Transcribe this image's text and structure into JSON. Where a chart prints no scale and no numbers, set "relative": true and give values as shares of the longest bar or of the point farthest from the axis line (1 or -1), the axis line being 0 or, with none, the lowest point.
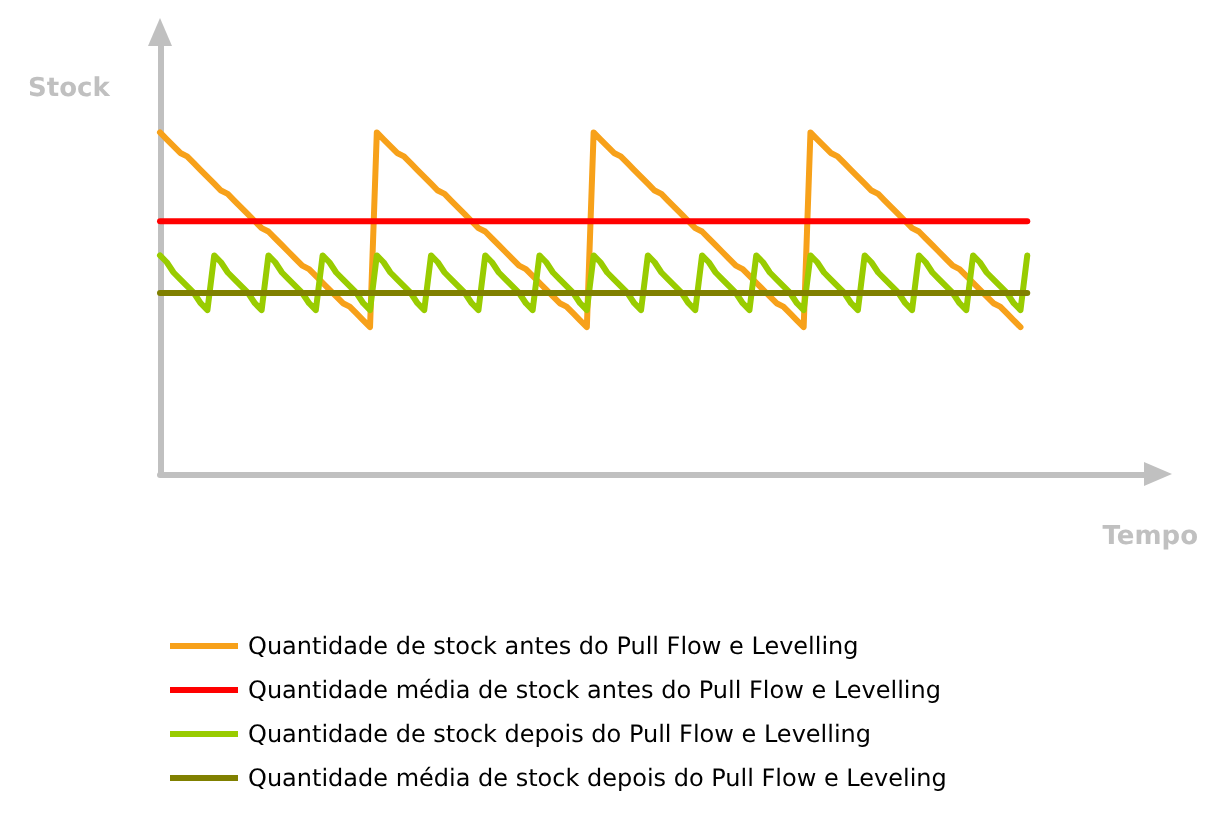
{
  "chart_data": {
    "type": "line",
    "relative": true,
    "xlabel": "Tempo",
    "ylabel": "Stock",
    "grid": false,
    "legend": "bottom",
    "marker": "none",
    "line_style": "solid",
    "categories": [
      null,
      null,
      null,
      null,
      null,
      null,
      null,
      null,
      null,
      null,
      null,
      null,
      null,
      null,
      null,
      null,
      null,
      null,
      null,
      null,
      null,
      null,
      null,
      null,
      null,
      null,
      null,
      null,
      null,
      null,
      null,
      null,
      null,
      null,
      null,
      null,
      null,
      null,
      null,
      null,
      null,
      null,
      null,
      null,
      null,
      null,
      null,
      null,
      null,
      null,
      null,
      null,
      null,
      null,
      null,
      null,
      null,
      null,
      null,
      null,
      null,
      null,
      null,
      null,
      null,
      null,
      null,
      null,
      null,
      null,
      null,
      null,
      null,
      null,
      null,
      null,
      null,
      null,
      null,
      null,
      null,
      null,
      null,
      null,
      null,
      null,
      null,
      null,
      null,
      null,
      null,
      null,
      null,
      null,
      null,
      null,
      null,
      null,
      null,
      null,
      null,
      null,
      null,
      null,
      null,
      null,
      null,
      null,
      null,
      null,
      null,
      null,
      null,
      null,
      null,
      null,
      null,
      null,
      null,
      null,
      null,
      null,
      null,
      null,
      null,
      null,
      null,
      null,
      null,
      null,
      null,
      null,
      null,
      null,
      null,
      null,
      null,
      null,
      null,
      null,
      null,
      null,
      null,
      null,
      null,
      null,
      null,
      null
    ],
    "series": [
      {
        "name": "Quantidade de stock antes do Pull Flow e Levelling",
        "color": "#f7a11a",
        "values": [
          1,
          0.98,
          0.96,
          0.94,
          0.93,
          0.91,
          0.89,
          0.87,
          0.85,
          0.83,
          0.82,
          0.8,
          0.78,
          0.76,
          0.74,
          0.72,
          0.71,
          0.69,
          0.67,
          0.65,
          0.63,
          0.61,
          0.6,
          0.58,
          0.56,
          0.54,
          0.52,
          0.5,
          0.49,
          0.47,
          0.45,
          0.43,
          1,
          0.98,
          0.96,
          0.94,
          0.93,
          0.91,
          0.89,
          0.87,
          0.85,
          0.83,
          0.82,
          0.8,
          0.78,
          0.76,
          0.74,
          0.72,
          0.71,
          0.69,
          0.67,
          0.65,
          0.63,
          0.61,
          0.6,
          0.58,
          0.56,
          0.54,
          0.52,
          0.5,
          0.49,
          0.47,
          0.45,
          0.43,
          1,
          0.98,
          0.96,
          0.94,
          0.93,
          0.91,
          0.89,
          0.87,
          0.85,
          0.83,
          0.82,
          0.8,
          0.78,
          0.76,
          0.74,
          0.72,
          0.71,
          0.69,
          0.67,
          0.65,
          0.63,
          0.61,
          0.6,
          0.58,
          0.56,
          0.54,
          0.52,
          0.5,
          0.49,
          0.47,
          0.45,
          0.43,
          1,
          0.98,
          0.96,
          0.94,
          0.93,
          0.91,
          0.89,
          0.87,
          0.85,
          0.83,
          0.82,
          0.8,
          0.78,
          0.76,
          0.74,
          0.72,
          0.71,
          0.69,
          0.67,
          0.65,
          0.63,
          0.61,
          0.6,
          0.58,
          0.56,
          0.54,
          0.52,
          0.5,
          0.49,
          0.47,
          0.45,
          0.43,
          null,
          null,
          null,
          null,
          null,
          null,
          null,
          null,
          null,
          null,
          null,
          null,
          null,
          null,
          null,
          null,
          null,
          null,
          null,
          null
        ]
      },
      {
        "name": "Quantidade média de stock antes do Pull Flow e Levelling",
        "color": "#ff0000",
        "values": [
          0.74,
          0.74,
          0.74,
          0.74,
          0.74,
          0.74,
          0.74,
          0.74,
          0.74,
          0.74,
          0.74,
          0.74,
          0.74,
          0.74,
          0.74,
          0.74,
          0.74,
          0.74,
          0.74,
          0.74,
          0.74,
          0.74,
          0.74,
          0.74,
          0.74,
          0.74,
          0.74,
          0.74,
          0.74,
          0.74,
          0.74,
          0.74,
          0.74,
          0.74,
          0.74,
          0.74,
          0.74,
          0.74,
          0.74,
          0.74,
          0.74,
          0.74,
          0.74,
          0.74,
          0.74,
          0.74,
          0.74,
          0.74,
          0.74,
          0.74,
          0.74,
          0.74,
          0.74,
          0.74,
          0.74,
          0.74,
          0.74,
          0.74,
          0.74,
          0.74,
          0.74,
          0.74,
          0.74,
          0.74,
          0.74,
          0.74,
          0.74,
          0.74,
          0.74,
          0.74,
          0.74,
          0.74,
          0.74,
          0.74,
          0.74,
          0.74,
          0.74,
          0.74,
          0.74,
          0.74,
          0.74,
          0.74,
          0.74,
          0.74,
          0.74,
          0.74,
          0.74,
          0.74,
          0.74,
          0.74,
          0.74,
          0.74,
          0.74,
          0.74,
          0.74,
          0.74,
          0.74,
          0.74,
          0.74,
          0.74,
          0.74,
          0.74,
          0.74,
          0.74,
          0.74,
          0.74,
          0.74,
          0.74,
          0.74,
          0.74,
          0.74,
          0.74,
          0.74,
          0.74,
          0.74,
          0.74,
          0.74,
          0.74,
          0.74,
          0.74,
          0.74,
          0.74,
          0.74,
          0.74,
          0.74,
          0.74,
          0.74,
          0.74,
          0.74,
          null,
          null,
          null,
          null,
          null,
          null,
          null,
          null,
          null,
          null,
          null,
          null,
          null,
          null,
          null,
          null,
          null,
          null,
          null
        ]
      },
      {
        "name": "Quantidade de stock depois do Pull Flow e Levelling",
        "color": "#99cc00",
        "values": [
          0.64,
          0.62,
          0.59,
          0.57,
          0.55,
          0.53,
          0.5,
          0.48,
          0.64,
          0.62,
          0.59,
          0.57,
          0.55,
          0.53,
          0.5,
          0.48,
          0.64,
          0.62,
          0.59,
          0.57,
          0.55,
          0.53,
          0.5,
          0.48,
          0.64,
          0.62,
          0.59,
          0.57,
          0.55,
          0.53,
          0.5,
          0.48,
          0.64,
          0.62,
          0.59,
          0.57,
          0.55,
          0.53,
          0.5,
          0.48,
          0.64,
          0.62,
          0.59,
          0.57,
          0.55,
          0.53,
          0.5,
          0.48,
          0.64,
          0.62,
          0.59,
          0.57,
          0.55,
          0.53,
          0.5,
          0.48,
          0.64,
          0.62,
          0.59,
          0.57,
          0.55,
          0.53,
          0.5,
          0.48,
          0.64,
          0.62,
          0.59,
          0.57,
          0.55,
          0.53,
          0.5,
          0.48,
          0.64,
          0.62,
          0.59,
          0.57,
          0.55,
          0.53,
          0.5,
          0.48,
          0.64,
          0.62,
          0.59,
          0.57,
          0.55,
          0.53,
          0.5,
          0.48,
          0.64,
          0.62,
          0.59,
          0.57,
          0.55,
          0.53,
          0.5,
          0.48,
          0.64,
          0.62,
          0.59,
          0.57,
          0.55,
          0.53,
          0.5,
          0.48,
          0.64,
          0.62,
          0.59,
          0.57,
          0.55,
          0.53,
          0.5,
          0.48,
          0.64,
          0.62,
          0.59,
          0.57,
          0.55,
          0.53,
          0.5,
          0.48,
          0.64,
          0.62,
          0.59,
          0.57,
          0.55,
          0.53,
          0.5,
          0.48,
          0.64,
          null,
          null,
          null,
          null,
          null,
          null,
          null,
          null,
          null,
          null,
          null,
          null,
          null,
          null,
          null,
          null,
          null,
          null,
          null
        ]
      },
      {
        "name": "Quantidade média de stock depois do Pull Flow e Leveling",
        "color": "#808000",
        "values": [
          0.53,
          0.53,
          0.53,
          0.53,
          0.53,
          0.53,
          0.53,
          0.53,
          0.53,
          0.53,
          0.53,
          0.53,
          0.53,
          0.53,
          0.53,
          0.53,
          0.53,
          0.53,
          0.53,
          0.53,
          0.53,
          0.53,
          0.53,
          0.53,
          0.53,
          0.53,
          0.53,
          0.53,
          0.53,
          0.53,
          0.53,
          0.53,
          0.53,
          0.53,
          0.53,
          0.53,
          0.53,
          0.53,
          0.53,
          0.53,
          0.53,
          0.53,
          0.53,
          0.53,
          0.53,
          0.53,
          0.53,
          0.53,
          0.53,
          0.53,
          0.53,
          0.53,
          0.53,
          0.53,
          0.53,
          0.53,
          0.53,
          0.53,
          0.53,
          0.53,
          0.53,
          0.53,
          0.53,
          0.53,
          0.53,
          0.53,
          0.53,
          0.53,
          0.53,
          0.53,
          0.53,
          0.53,
          0.53,
          0.53,
          0.53,
          0.53,
          0.53,
          0.53,
          0.53,
          0.53,
          0.53,
          0.53,
          0.53,
          0.53,
          0.53,
          0.53,
          0.53,
          0.53,
          0.53,
          0.53,
          0.53,
          0.53,
          0.53,
          0.53,
          0.53,
          0.53,
          0.53,
          0.53,
          0.53,
          0.53,
          0.53,
          0.53,
          0.53,
          0.53,
          0.53,
          0.53,
          0.53,
          0.53,
          0.53,
          0.53,
          0.53,
          0.53,
          0.53,
          0.53,
          0.53,
          0.53,
          0.53,
          0.53,
          0.53,
          0.53,
          0.53,
          0.53,
          0.53,
          0.53,
          0.53,
          0.53,
          0.53,
          0.53,
          0.53,
          null,
          null,
          null,
          null,
          null,
          null,
          null,
          null,
          null,
          null,
          null,
          null,
          null,
          null,
          null,
          null,
          null,
          null,
          null
        ]
      }
    ]
  }
}
